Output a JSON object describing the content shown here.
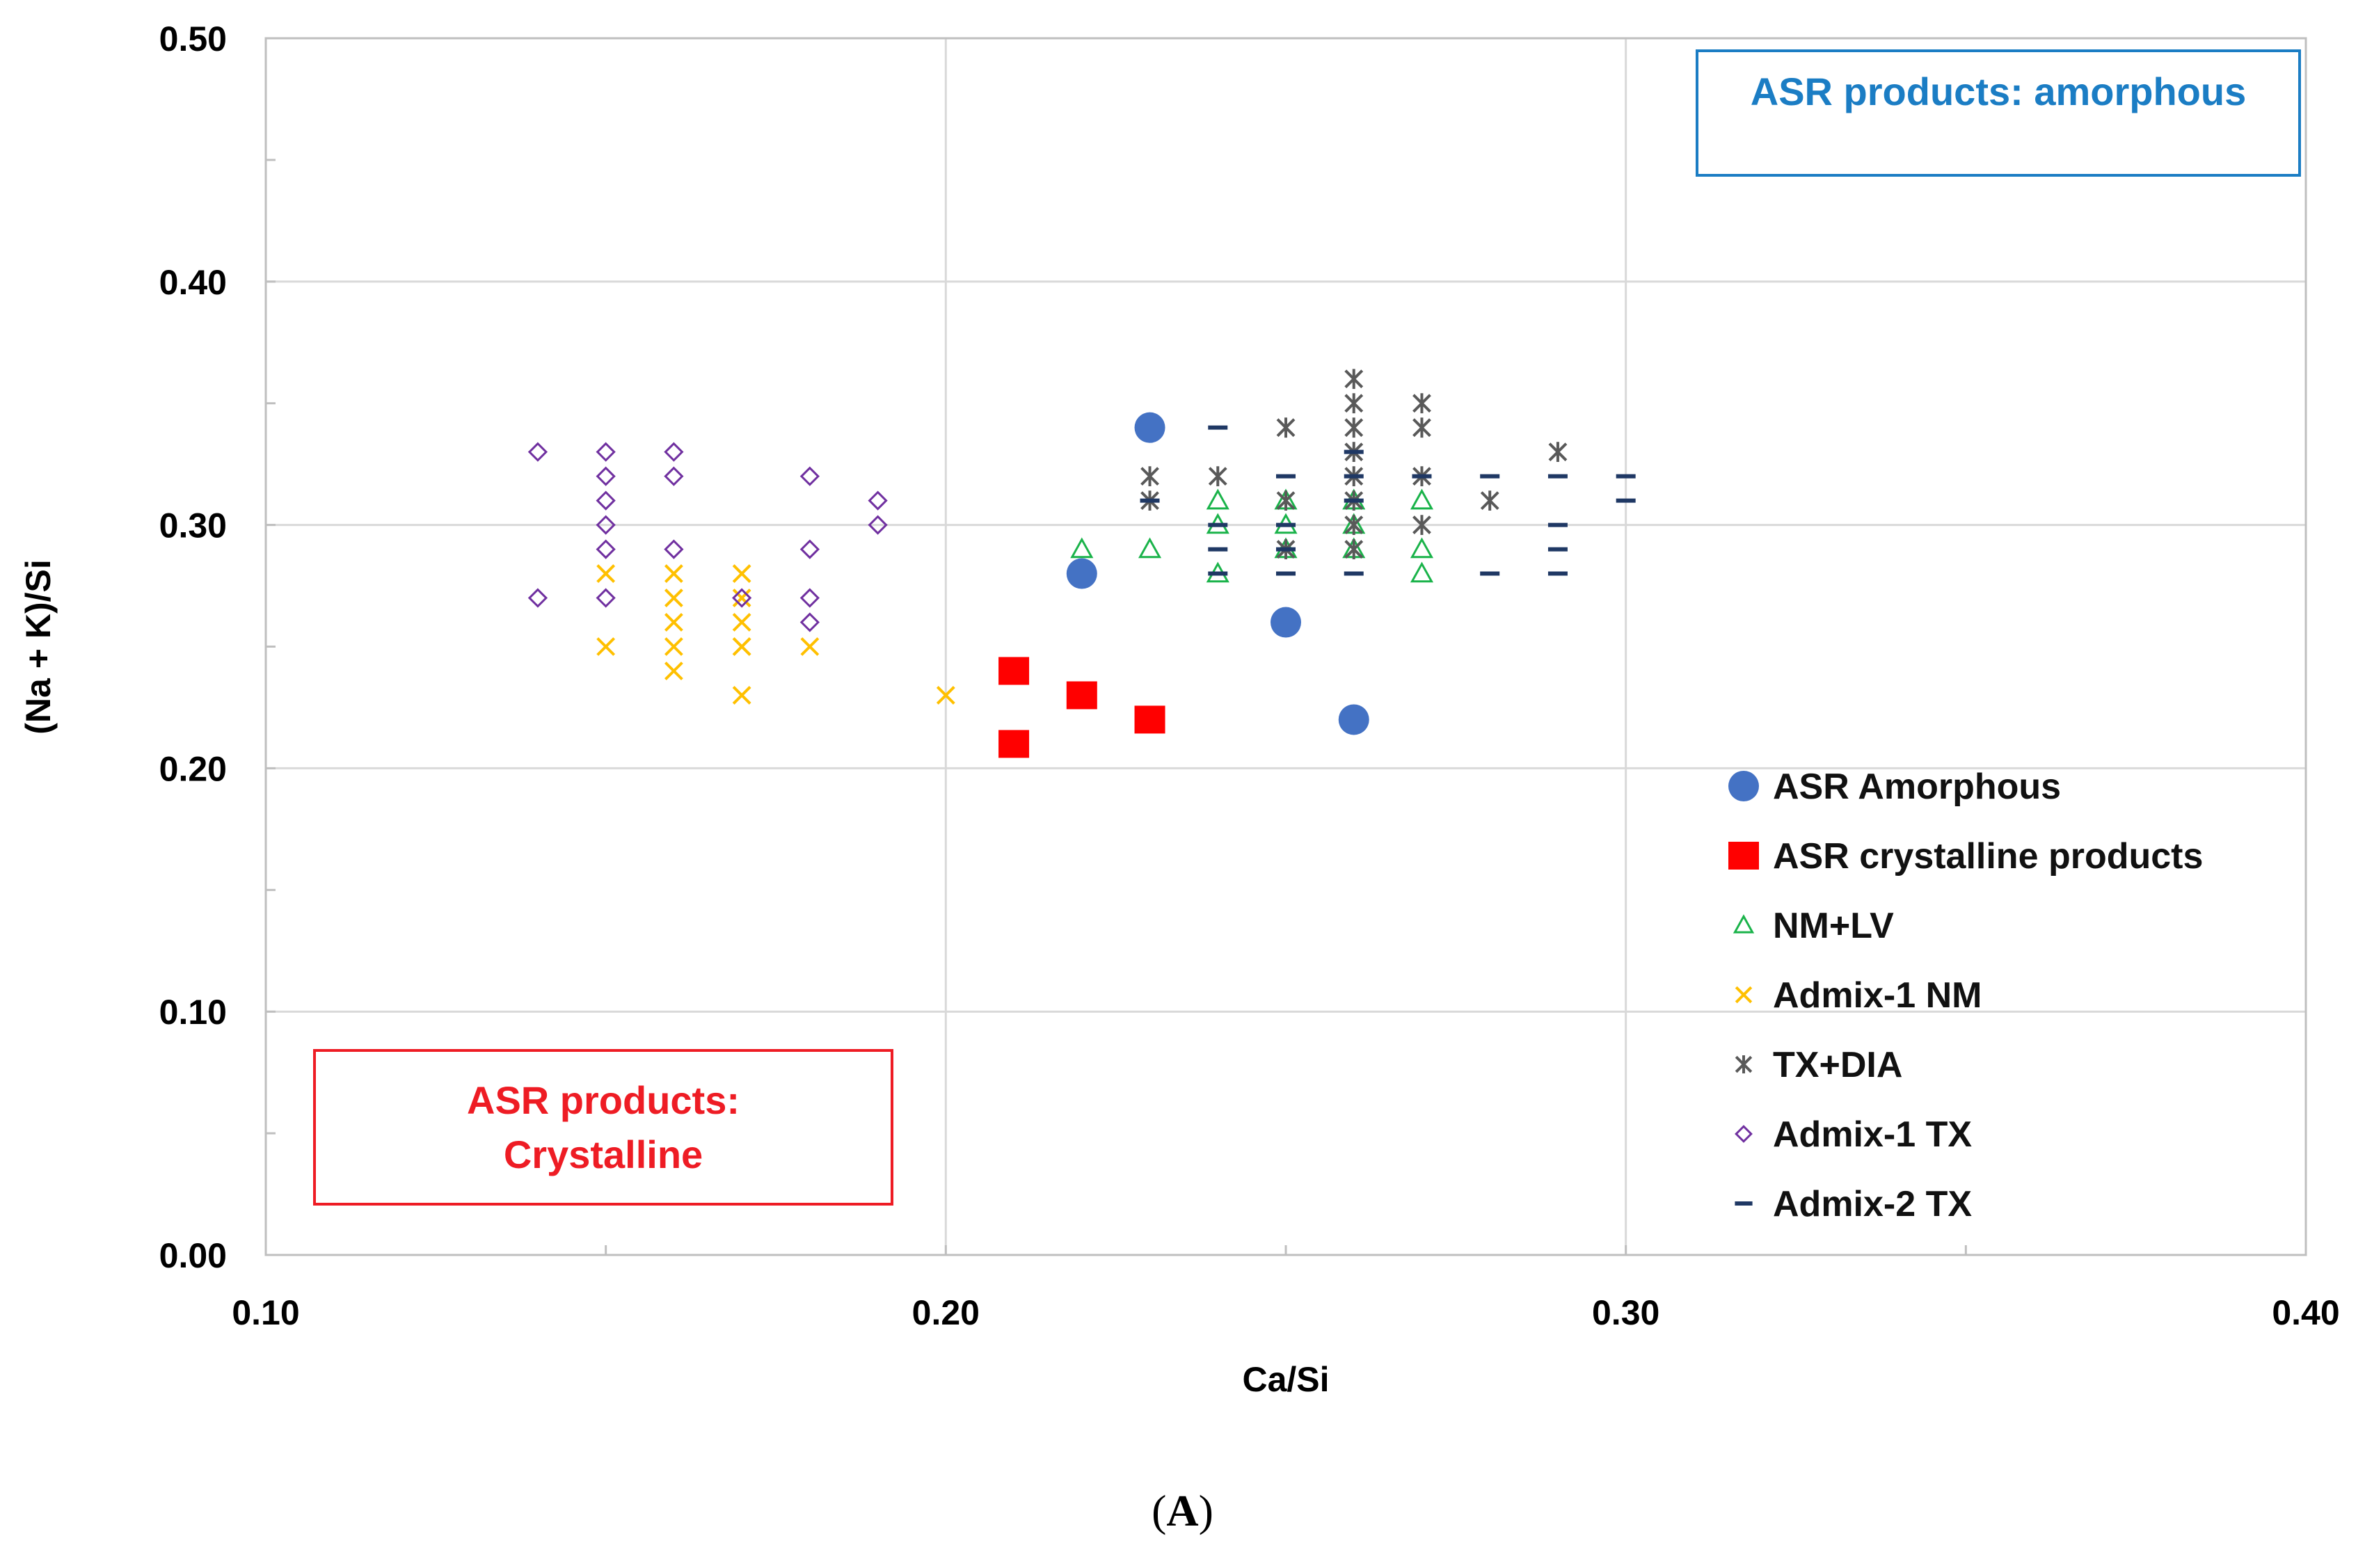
{
  "chart_data": {
    "type": "scatter",
    "title": "",
    "xlabel": "Ca/Si",
    "ylabel": "(Na + K)/Si",
    "xlim": [
      0.1,
      0.4
    ],
    "ylim": [
      0.0,
      0.5
    ],
    "xticks": [
      "0.10",
      "0.20",
      "0.30",
      "0.40"
    ],
    "yticks": [
      "0.00",
      "0.10",
      "0.20",
      "0.30",
      "0.40",
      "0.50"
    ],
    "grid": true,
    "legend_position": "bottom-right",
    "series": [
      {
        "name": "ASR Amorphous",
        "marker": "circle",
        "color": "#4472c4",
        "x": [
          0.22,
          0.23,
          0.25,
          0.26
        ],
        "y": [
          0.28,
          0.34,
          0.26,
          0.22
        ]
      },
      {
        "name": "ASR crystalline products",
        "marker": "square",
        "color": "#ff0000",
        "x": [
          0.21,
          0.21,
          0.22,
          0.23
        ],
        "y": [
          0.24,
          0.21,
          0.23,
          0.22
        ]
      },
      {
        "name": "NM+LV",
        "marker": "triangle",
        "color": "#1ab34a",
        "x": [
          0.22,
          0.23,
          0.24,
          0.24,
          0.24,
          0.25,
          0.25,
          0.25,
          0.26,
          0.26,
          0.26,
          0.27,
          0.27,
          0.27
        ],
        "y": [
          0.29,
          0.29,
          0.31,
          0.3,
          0.28,
          0.31,
          0.3,
          0.29,
          0.31,
          0.3,
          0.29,
          0.31,
          0.29,
          0.28
        ]
      },
      {
        "name": "Admix-1 NM",
        "marker": "x",
        "color": "#ffc000",
        "x": [
          0.15,
          0.15,
          0.16,
          0.16,
          0.16,
          0.16,
          0.16,
          0.17,
          0.17,
          0.17,
          0.17,
          0.17,
          0.17,
          0.18,
          0.2
        ],
        "y": [
          0.28,
          0.25,
          0.28,
          0.27,
          0.26,
          0.25,
          0.24,
          0.28,
          0.27,
          0.26,
          0.25,
          0.25,
          0.23,
          0.25,
          0.23
        ]
      },
      {
        "name": "TX+DIA",
        "marker": "star",
        "color": "#595959",
        "x": [
          0.23,
          0.23,
          0.24,
          0.25,
          0.25,
          0.25,
          0.26,
          0.26,
          0.26,
          0.26,
          0.26,
          0.26,
          0.26,
          0.26,
          0.27,
          0.27,
          0.27,
          0.27,
          0.28,
          0.29
        ],
        "y": [
          0.32,
          0.31,
          0.32,
          0.34,
          0.31,
          0.29,
          0.36,
          0.35,
          0.34,
          0.33,
          0.32,
          0.31,
          0.3,
          0.29,
          0.35,
          0.34,
          0.32,
          0.3,
          0.31,
          0.33
        ]
      },
      {
        "name": "Admix-1 TX",
        "marker": "diamond",
        "color": "#7030a0",
        "x": [
          0.14,
          0.14,
          0.15,
          0.15,
          0.15,
          0.15,
          0.15,
          0.15,
          0.16,
          0.16,
          0.16,
          0.17,
          0.18,
          0.18,
          0.18,
          0.18,
          0.19,
          0.19
        ],
        "y": [
          0.33,
          0.27,
          0.33,
          0.32,
          0.31,
          0.3,
          0.29,
          0.27,
          0.33,
          0.32,
          0.29,
          0.27,
          0.32,
          0.29,
          0.27,
          0.26,
          0.31,
          0.3
        ]
      },
      {
        "name": "Admix-2 TX",
        "marker": "dash",
        "color": "#1f3864",
        "x": [
          0.23,
          0.24,
          0.24,
          0.24,
          0.24,
          0.25,
          0.25,
          0.25,
          0.25,
          0.26,
          0.26,
          0.26,
          0.26,
          0.27,
          0.28,
          0.28,
          0.29,
          0.29,
          0.29,
          0.29,
          0.3,
          0.3
        ],
        "y": [
          0.31,
          0.34,
          0.3,
          0.29,
          0.28,
          0.32,
          0.3,
          0.29,
          0.28,
          0.33,
          0.32,
          0.31,
          0.28,
          0.32,
          0.32,
          0.28,
          0.32,
          0.3,
          0.29,
          0.28,
          0.32,
          0.31
        ]
      }
    ],
    "annotations": [
      {
        "text": "ASR products: amorphous",
        "color": "#1b7dc4"
      },
      {
        "text": [
          "ASR products:",
          "Crystalline"
        ],
        "color": "#ee1c24"
      }
    ]
  },
  "panel_label": "(A)",
  "panel_label_letter": "A"
}
